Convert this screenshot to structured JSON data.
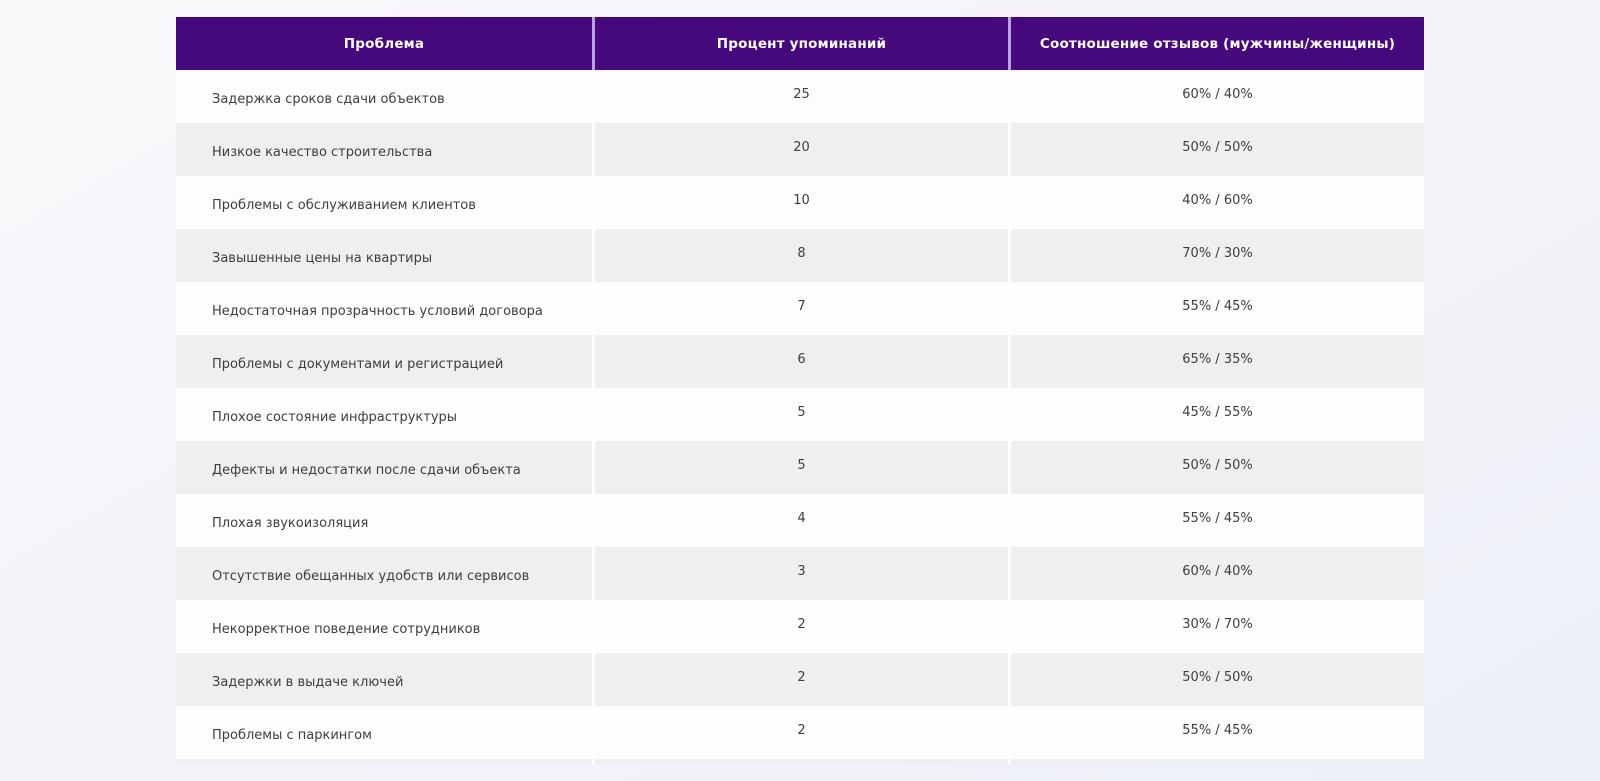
{
  "page": {
    "background_top": "#f9f8fb",
    "background_bottom": "#ecf0f7"
  },
  "colors": {
    "header_bg": "#45097d",
    "header_text": "#ffffff",
    "header_divider": "#b9a3dc",
    "row_bg": "#fdfdfd",
    "row_alt_bg": "#efefef",
    "row_divider": "#ffffff",
    "body_text": "#3e3e3e"
  },
  "chart_data": {
    "type": "table",
    "columns": [
      "Проблема",
      "Процент упоминаний",
      "Соотношение отзывов (мужчины/женщины)"
    ],
    "rows": [
      {
        "problem": "Задержка сроков сдачи объектов",
        "mentions_percent": 25,
        "ratio_men_women": "60% / 40%"
      },
      {
        "problem": "Низкое качество строительства",
        "mentions_percent": 20,
        "ratio_men_women": "50% / 50%"
      },
      {
        "problem": "Проблемы с обслуживанием клиентов",
        "mentions_percent": 10,
        "ratio_men_women": "40% / 60%"
      },
      {
        "problem": "Завышенные цены на квартиры",
        "mentions_percent": 8,
        "ratio_men_women": "70% / 30%"
      },
      {
        "problem": "Недостаточная прозрачность условий договора",
        "mentions_percent": 7,
        "ratio_men_women": "55% / 45%"
      },
      {
        "problem": "Проблемы с документами и регистрацией",
        "mentions_percent": 6,
        "ratio_men_women": "65% / 35%"
      },
      {
        "problem": "Плохое состояние инфраструктуры",
        "mentions_percent": 5,
        "ratio_men_women": "45% / 55%"
      },
      {
        "problem": "Дефекты и недостатки после сдачи объекта",
        "mentions_percent": 5,
        "ratio_men_women": "50% / 50%"
      },
      {
        "problem": "Плохая звукоизоляция",
        "mentions_percent": 4,
        "ratio_men_women": "55% / 45%"
      },
      {
        "problem": "Отсутствие обещанных удобств или сервисов",
        "mentions_percent": 3,
        "ratio_men_women": "60% / 40%"
      },
      {
        "problem": "Некорректное поведение сотрудников",
        "mentions_percent": 2,
        "ratio_men_women": "30% / 70%"
      },
      {
        "problem": "Задержки в выдаче ключей",
        "mentions_percent": 2,
        "ratio_men_women": "50% / 50%"
      },
      {
        "problem": "Проблемы с паркингом",
        "mentions_percent": 2,
        "ratio_men_women": "55% / 45%"
      }
    ],
    "title": "",
    "legend": null,
    "grid": false
  }
}
